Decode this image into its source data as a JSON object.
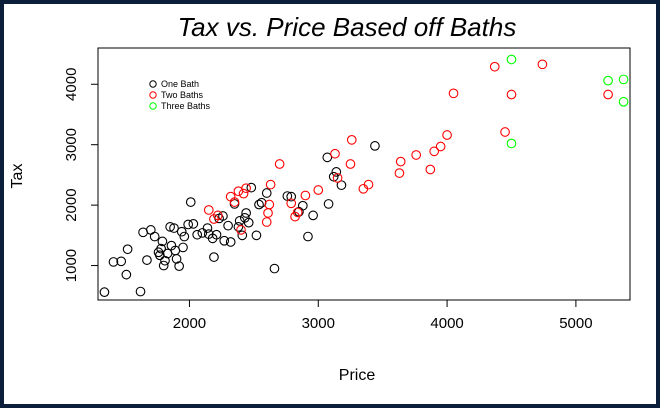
{
  "chart_data": {
    "type": "scatter",
    "title": "Tax vs. Price Based off Baths",
    "xlabel": "Price",
    "ylabel": "Tax",
    "xlim": [
      1290,
      5420
    ],
    "ylim": [
      430,
      4600
    ],
    "x_ticks": [
      2000,
      3000,
      4000,
      5000
    ],
    "y_ticks": [
      1000,
      2000,
      3000,
      4000
    ],
    "grid": false,
    "legend_position": "top-left",
    "series": [
      {
        "name": "One Bath",
        "color": "#000000",
        "points": [
          [
            1340,
            560
          ],
          [
            1410,
            1060
          ],
          [
            1470,
            1070
          ],
          [
            1510,
            850
          ],
          [
            1520,
            1270
          ],
          [
            1620,
            570
          ],
          [
            1640,
            1550
          ],
          [
            1670,
            1090
          ],
          [
            1700,
            1590
          ],
          [
            1730,
            1480
          ],
          [
            1760,
            1220
          ],
          [
            1770,
            1170
          ],
          [
            1780,
            1280
          ],
          [
            1790,
            1400
          ],
          [
            1800,
            1000
          ],
          [
            1810,
            1080
          ],
          [
            1830,
            1200
          ],
          [
            1850,
            1640
          ],
          [
            1860,
            1330
          ],
          [
            1880,
            1620
          ],
          [
            1890,
            1250
          ],
          [
            1900,
            1110
          ],
          [
            1920,
            990
          ],
          [
            1940,
            1560
          ],
          [
            1950,
            1300
          ],
          [
            1960,
            1480
          ],
          [
            1990,
            1680
          ],
          [
            2010,
            2050
          ],
          [
            2030,
            1690
          ],
          [
            2060,
            1510
          ],
          [
            2100,
            1540
          ],
          [
            2140,
            1620
          ],
          [
            2150,
            1520
          ],
          [
            2180,
            1450
          ],
          [
            2190,
            1140
          ],
          [
            2210,
            1510
          ],
          [
            2230,
            1780
          ],
          [
            2260,
            1820
          ],
          [
            2270,
            1410
          ],
          [
            2300,
            1660
          ],
          [
            2320,
            1390
          ],
          [
            2350,
            2020
          ],
          [
            2380,
            1640
          ],
          [
            2390,
            1740
          ],
          [
            2410,
            1500
          ],
          [
            2430,
            1790
          ],
          [
            2440,
            1870
          ],
          [
            2460,
            1710
          ],
          [
            2480,
            2290
          ],
          [
            2520,
            1500
          ],
          [
            2540,
            2010
          ],
          [
            2560,
            2040
          ],
          [
            2600,
            2200
          ],
          [
            2660,
            950
          ],
          [
            2760,
            2150
          ],
          [
            2790,
            2140
          ],
          [
            2850,
            1890
          ],
          [
            2880,
            1990
          ],
          [
            2920,
            1480
          ],
          [
            2960,
            1830
          ],
          [
            3070,
            2790
          ],
          [
            3080,
            2020
          ],
          [
            3120,
            2470
          ],
          [
            3140,
            2550
          ],
          [
            3180,
            2330
          ],
          [
            3440,
            2980
          ]
        ]
      },
      {
        "name": "Two Baths",
        "color": "#ff0000",
        "points": [
          [
            2150,
            1920
          ],
          [
            2190,
            1770
          ],
          [
            2220,
            1830
          ],
          [
            2320,
            2140
          ],
          [
            2350,
            2050
          ],
          [
            2380,
            2230
          ],
          [
            2400,
            1590
          ],
          [
            2420,
            2190
          ],
          [
            2440,
            2280
          ],
          [
            2600,
            1720
          ],
          [
            2610,
            1870
          ],
          [
            2620,
            2010
          ],
          [
            2630,
            2340
          ],
          [
            2700,
            2680
          ],
          [
            2790,
            2030
          ],
          [
            2820,
            1810
          ],
          [
            2840,
            1880
          ],
          [
            2900,
            2160
          ],
          [
            3000,
            2250
          ],
          [
            3130,
            2850
          ],
          [
            3150,
            2450
          ],
          [
            3250,
            2680
          ],
          [
            3260,
            3080
          ],
          [
            3350,
            2270
          ],
          [
            3390,
            2340
          ],
          [
            3630,
            2530
          ],
          [
            3640,
            2720
          ],
          [
            3760,
            2830
          ],
          [
            3870,
            2590
          ],
          [
            3900,
            2890
          ],
          [
            3950,
            2970
          ],
          [
            4000,
            3160
          ],
          [
            4050,
            3850
          ],
          [
            4370,
            4290
          ],
          [
            4450,
            3210
          ],
          [
            4500,
            3830
          ],
          [
            4740,
            4330
          ],
          [
            5250,
            3830
          ]
        ]
      },
      {
        "name": "Three Baths",
        "color": "#00ff00",
        "points": [
          [
            4500,
            3020
          ],
          [
            4500,
            4410
          ],
          [
            5250,
            4060
          ],
          [
            5370,
            4080
          ],
          [
            5370,
            3710
          ]
        ]
      }
    ]
  }
}
